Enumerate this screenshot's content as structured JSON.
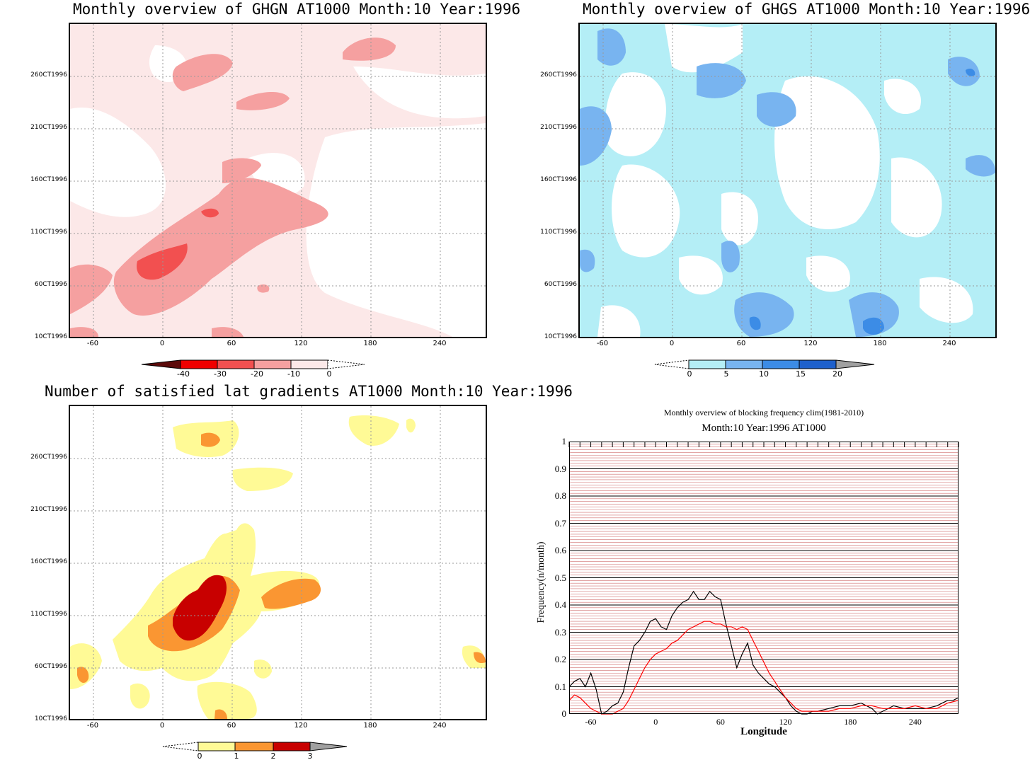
{
  "panels": {
    "ghgn": {
      "title": "Monthly overview of GHGN AT1000 Month:10 Year:1996",
      "yticks": [
        "260CT1996",
        "210CT1996",
        "160CT1996",
        "110CT1996",
        "60CT1996",
        "10CT1996"
      ],
      "xticks": [
        "-60",
        "0",
        "60",
        "120",
        "180",
        "240"
      ],
      "colorbar": [
        "-40",
        "-30",
        "-20",
        "-10",
        "0"
      ],
      "colors": [
        "#5c0a0a",
        "#f00000",
        "#f25050",
        "#f5a0a0",
        "#fce8e8"
      ]
    },
    "ghgs": {
      "title": "Monthly overview of GHGS AT1000 Month:10 Year:1996",
      "yticks": [
        "260CT1996",
        "210CT1996",
        "160CT1996",
        "110CT1996",
        "60CT1996",
        "10CT1996"
      ],
      "xticks": [
        "-60",
        "0",
        "60",
        "120",
        "180",
        "240"
      ],
      "colorbar": [
        "0",
        "5",
        "10",
        "15",
        "20"
      ],
      "colors": [
        "#b4eef6",
        "#78b4f0",
        "#3c8ce6",
        "#1e60cc",
        "#a0a0a0"
      ]
    },
    "gradients": {
      "title": "Number of satisfied lat gradients AT1000 Month:10 Year:1996",
      "yticks": [
        "260CT1996",
        "210CT1996",
        "160CT1996",
        "110CT1996",
        "60CT1996",
        "10CT1996"
      ],
      "xticks": [
        "-60",
        "0",
        "60",
        "120",
        "180",
        "240"
      ],
      "colorbar": [
        "0",
        "1",
        "2",
        "3"
      ],
      "colors": [
        "#fffa96",
        "#fa9632",
        "#c80000",
        "#a0a0a0"
      ]
    },
    "blocking": {
      "title": "Monthly overview of blocking frequency clim(1981-2010)",
      "subtitle": "Month:10 Year:1996  AT1000",
      "ylabel": "Frequency(n/month)",
      "xlabel": "Longitude",
      "yticks": [
        "0",
        "0.1",
        "0.2",
        "0.3",
        "0.4",
        "0.5",
        "0.6",
        "0.7",
        "0.8",
        "0.9",
        "1"
      ],
      "xticks": [
        "-60",
        "0",
        "60",
        "120",
        "180",
        "240"
      ]
    }
  },
  "chart_data": [
    {
      "type": "heatmap",
      "title": "Monthly overview of GHGN AT1000 Month:10 Year:1996",
      "xlim": [
        -80,
        280
      ],
      "colorbar_levels": [
        -40,
        -30,
        -20,
        -10,
        0
      ]
    },
    {
      "type": "heatmap",
      "title": "Monthly overview of GHGS AT1000 Month:10 Year:1996",
      "xlim": [
        -80,
        280
      ],
      "colorbar_levels": [
        0,
        5,
        10,
        15,
        20
      ]
    },
    {
      "type": "heatmap",
      "title": "Number of satisfied lat gradients AT1000 Month:10 Year:1996",
      "xlim": [
        -80,
        280
      ],
      "colorbar_levels": [
        0,
        1,
        2,
        3
      ]
    },
    {
      "type": "line",
      "title": "Monthly overview of blocking frequency clim(1981-2010)",
      "subtitle": "Month:10 Year:1996  AT1000",
      "xlabel": "Longitude",
      "ylabel": "Frequency(n/month)",
      "xlim": [
        -80,
        280
      ],
      "ylim": [
        0,
        1
      ],
      "series": [
        {
          "color": "#000000",
          "x": [
            -80,
            -75,
            -70,
            -65,
            -60,
            -55,
            -50,
            -45,
            -40,
            -35,
            -30,
            -25,
            -20,
            -15,
            -10,
            -5,
            0,
            5,
            10,
            15,
            20,
            25,
            30,
            35,
            40,
            45,
            50,
            55,
            60,
            65,
            70,
            75,
            80,
            85,
            90,
            95,
            100,
            105,
            110,
            115,
            120,
            125,
            130,
            135,
            140,
            145,
            150,
            160,
            170,
            180,
            190,
            200,
            205,
            210,
            220,
            230,
            240,
            250,
            260,
            265,
            270,
            275,
            280
          ],
          "y": [
            0.1,
            0.12,
            0.13,
            0.1,
            0.15,
            0.09,
            0.0,
            0.01,
            0.03,
            0.04,
            0.08,
            0.17,
            0.25,
            0.27,
            0.3,
            0.34,
            0.35,
            0.32,
            0.31,
            0.36,
            0.39,
            0.41,
            0.42,
            0.45,
            0.42,
            0.42,
            0.45,
            0.43,
            0.42,
            0.33,
            0.25,
            0.17,
            0.22,
            0.26,
            0.18,
            0.15,
            0.13,
            0.11,
            0.1,
            0.08,
            0.06,
            0.03,
            0.01,
            0.0,
            0.0,
            0.01,
            0.01,
            0.02,
            0.03,
            0.03,
            0.04,
            0.02,
            0.0,
            0.01,
            0.03,
            0.02,
            0.02,
            0.02,
            0.03,
            0.04,
            0.05,
            0.05,
            0.06
          ]
        },
        {
          "color": "#ff0000",
          "x": [
            -80,
            -75,
            -70,
            -65,
            -60,
            -55,
            -50,
            -45,
            -40,
            -35,
            -30,
            -25,
            -20,
            -15,
            -10,
            -5,
            0,
            5,
            10,
            15,
            20,
            25,
            30,
            35,
            40,
            45,
            50,
            55,
            60,
            65,
            70,
            75,
            80,
            85,
            90,
            95,
            100,
            105,
            110,
            115,
            120,
            125,
            130,
            135,
            140,
            150,
            160,
            170,
            180,
            190,
            200,
            210,
            220,
            230,
            240,
            250,
            260,
            270,
            280
          ],
          "y": [
            0.05,
            0.07,
            0.06,
            0.04,
            0.02,
            0.01,
            0.0,
            0.0,
            0.0,
            0.01,
            0.02,
            0.05,
            0.09,
            0.13,
            0.17,
            0.2,
            0.22,
            0.23,
            0.24,
            0.26,
            0.27,
            0.29,
            0.31,
            0.32,
            0.33,
            0.34,
            0.34,
            0.33,
            0.33,
            0.32,
            0.32,
            0.31,
            0.32,
            0.31,
            0.27,
            0.23,
            0.19,
            0.15,
            0.12,
            0.09,
            0.06,
            0.04,
            0.02,
            0.01,
            0.01,
            0.01,
            0.01,
            0.02,
            0.02,
            0.03,
            0.03,
            0.02,
            0.02,
            0.02,
            0.03,
            0.02,
            0.02,
            0.04,
            0.05
          ]
        }
      ]
    }
  ]
}
